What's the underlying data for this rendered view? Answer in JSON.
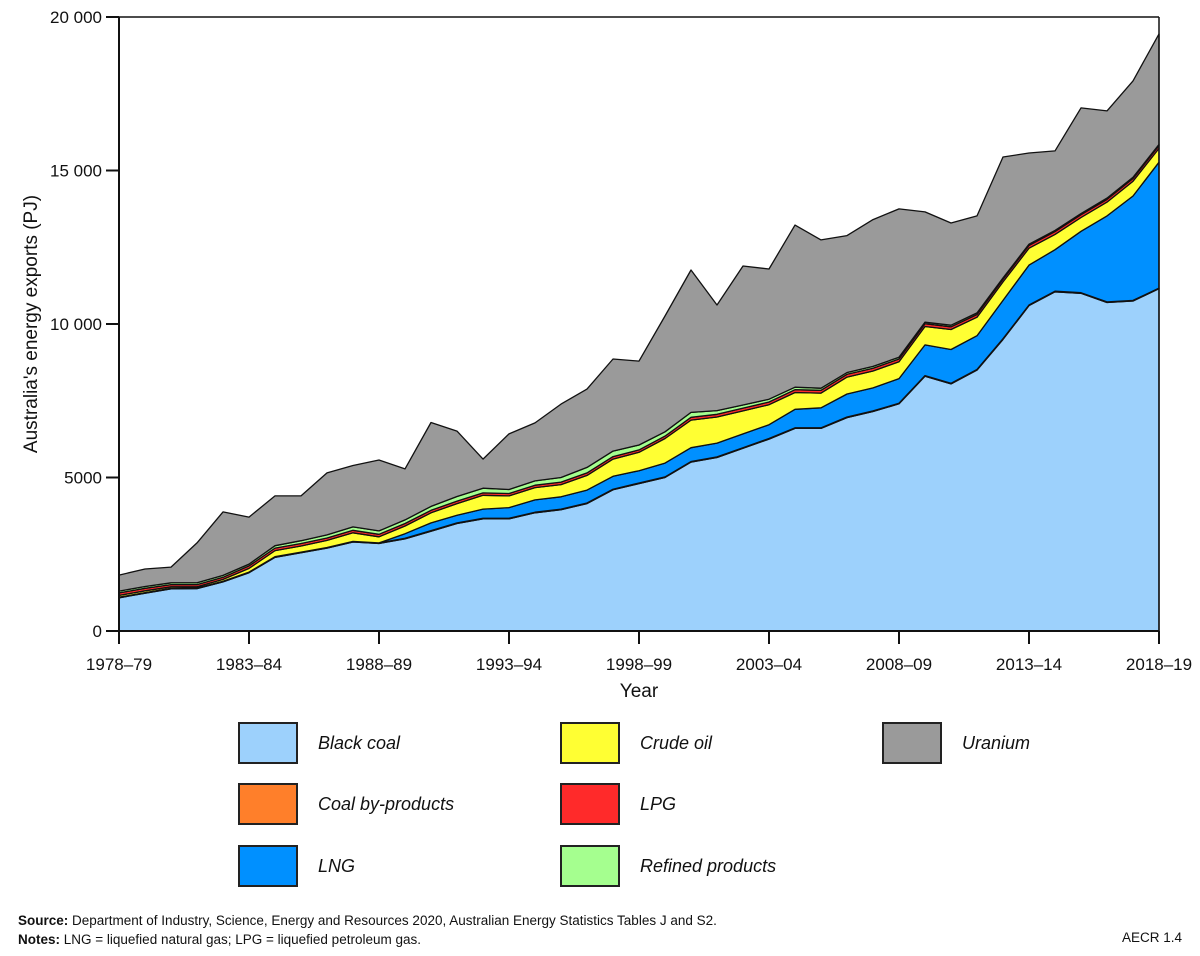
{
  "chart_data": {
    "type": "area",
    "stacked": true,
    "title": "",
    "xlabel": "Year",
    "ylabel": "Australia's energy exports (PJ)",
    "ylim": [
      0,
      20000
    ],
    "yticks": [
      0,
      5000,
      10000,
      15000,
      20000
    ],
    "ytick_labels": [
      "0",
      "5000",
      "10 000",
      "15 000",
      "20 000"
    ],
    "xtick_labels": [
      "1978–79",
      "1983–84",
      "1988–89",
      "1993–94",
      "1998–99",
      "2003–04",
      "2008–09",
      "2013–14",
      "2018–19"
    ],
    "grid": false,
    "legend_position": "bottom",
    "x": [
      "1978–79",
      "1979–80",
      "1980–81",
      "1981–82",
      "1982–83",
      "1983–84",
      "1984–85",
      "1985–86",
      "1986–87",
      "1987–88",
      "1988–89",
      "1989–90",
      "1990–91",
      "1991–92",
      "1992–93",
      "1993–94",
      "1994–95",
      "1995–96",
      "1996–97",
      "1997–98",
      "1998–99",
      "1999–00",
      "2000–01",
      "2001–02",
      "2002–03",
      "2003–04",
      "2004–05",
      "2005–06",
      "2006–07",
      "2007–08",
      "2008–09",
      "2009–10",
      "2010–11",
      "2011–12",
      "2012–13",
      "2013–14",
      "2014–15",
      "2015–16",
      "2016–17",
      "2017–18",
      "2018–19"
    ],
    "series": [
      {
        "name": "Black coal",
        "color": "#9dd1fc",
        "values": [
          1080,
          1230,
          1370,
          1380,
          1600,
          1900,
          2400,
          2550,
          2700,
          2900,
          2850,
          3000,
          3250,
          3500,
          3650,
          3650,
          3850,
          3950,
          4150,
          4600,
          4800,
          5000,
          5500,
          5650,
          5950,
          6250,
          6600,
          6600,
          6950,
          7150,
          7400,
          8300,
          8050,
          8500,
          9500,
          10600,
          11050,
          11000,
          10700,
          10750,
          11150
        ]
      },
      {
        "name": "Coal by-products",
        "color": "#ff7f2a",
        "values": [
          20,
          20,
          20,
          20,
          20,
          20,
          20,
          20,
          20,
          20,
          20,
          20,
          20,
          20,
          20,
          20,
          20,
          20,
          20,
          20,
          20,
          20,
          20,
          20,
          20,
          20,
          20,
          20,
          20,
          20,
          20,
          20,
          20,
          20,
          20,
          20,
          20,
          20,
          20,
          20,
          20
        ]
      },
      {
        "name": "LNG",
        "color": "#0090ff",
        "values": [
          0,
          0,
          0,
          0,
          0,
          0,
          0,
          0,
          0,
          0,
          0,
          150,
          250,
          250,
          300,
          350,
          400,
          400,
          420,
          420,
          400,
          450,
          450,
          450,
          450,
          450,
          600,
          650,
          750,
          750,
          800,
          1000,
          1100,
          1100,
          1250,
          1300,
          1350,
          2000,
          2800,
          3400,
          4100
        ]
      },
      {
        "name": "Crude oil",
        "color": "#ffff33",
        "values": [
          60,
          60,
          50,
          40,
          60,
          120,
          200,
          200,
          230,
          280,
          200,
          250,
          330,
          380,
          450,
          380,
          400,
          400,
          480,
          560,
          600,
          800,
          900,
          850,
          750,
          650,
          550,
          480,
          550,
          550,
          550,
          600,
          650,
          600,
          600,
          550,
          500,
          450,
          450,
          480,
          450
        ]
      },
      {
        "name": "LPG",
        "color": "#ff2a2a",
        "values": [
          80,
          80,
          70,
          70,
          70,
          80,
          80,
          80,
          80,
          80,
          80,
          80,
          80,
          80,
          80,
          80,
          80,
          80,
          80,
          80,
          80,
          80,
          90,
          90,
          90,
          90,
          90,
          90,
          90,
          90,
          90,
          90,
          90,
          90,
          90,
          90,
          90,
          90,
          90,
          90,
          90
        ]
      },
      {
        "name": "Refined products",
        "color": "#a5ff8f",
        "values": [
          60,
          60,
          60,
          60,
          60,
          60,
          80,
          90,
          100,
          110,
          110,
          120,
          130,
          150,
          150,
          130,
          140,
          150,
          180,
          180,
          160,
          140,
          160,
          120,
          100,
          90,
          80,
          70,
          60,
          60,
          60,
          50,
          50,
          50,
          40,
          40,
          40,
          40,
          40,
          40,
          40
        ]
      },
      {
        "name": "Uranium",
        "color": "#9a9a9a",
        "values": [
          520,
          570,
          510,
          1300,
          2070,
          1530,
          1620,
          1460,
          2020,
          2000,
          2310,
          1660,
          2730,
          2130,
          950,
          1810,
          1890,
          2390,
          2550,
          3000,
          2730,
          3770,
          4640,
          3440,
          4530,
          4240,
          5280,
          4830,
          4460,
          4780,
          4830,
          3590,
          3330,
          3160,
          3940,
          2970,
          2590,
          3440,
          2840,
          3140,
          3600
        ]
      }
    ]
  },
  "legend": {
    "items": [
      {
        "label": "Black coal",
        "color": "#9dd1fc"
      },
      {
        "label": "Coal by-products",
        "color": "#ff7f2a"
      },
      {
        "label": "LNG",
        "color": "#0090ff"
      },
      {
        "label": "Crude oil",
        "color": "#ffff33"
      },
      {
        "label": "LPG",
        "color": "#ff2a2a"
      },
      {
        "label": "Refined products",
        "color": "#a5ff8f"
      },
      {
        "label": "Uranium",
        "color": "#9a9a9a"
      }
    ]
  },
  "footer": {
    "source_label": "Source:",
    "source_text": " Department of Industry, Science, Energy and Resources 2020, Australian Energy Statistics Tables J and S2.",
    "notes_label": "Notes:",
    "notes_text": " LNG = liquefied natural gas; LPG = liquefied petroleum gas.",
    "code": "AECR 1.4"
  }
}
